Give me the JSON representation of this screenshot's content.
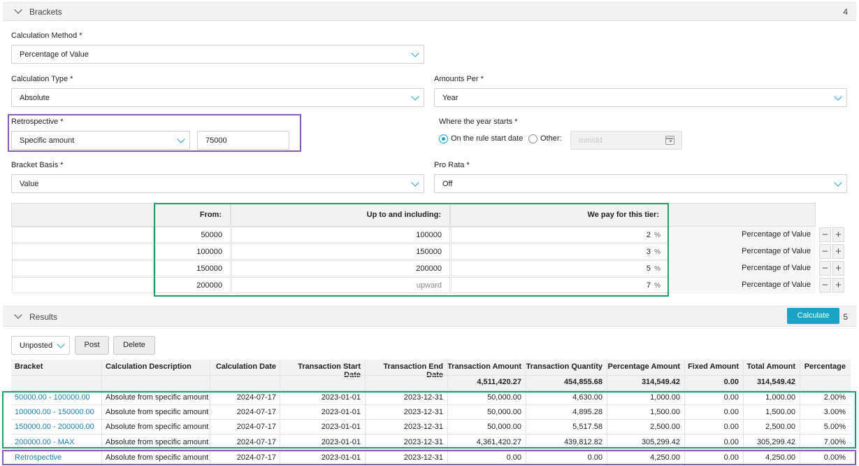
{
  "brackets_section": {
    "title": "Brackets",
    "count": "4"
  },
  "form": {
    "calc_method": {
      "label": "Calculation Method *",
      "value": "Percentage of Value"
    },
    "calc_type": {
      "label": "Calculation Type *",
      "value": "Absolute"
    },
    "amounts_per": {
      "label": "Amounts Per *",
      "value": "Year"
    },
    "retrospective": {
      "label": "Retrospective *",
      "value": "Specific amount",
      "amount": "75000"
    },
    "year_starts": {
      "label": "Where the year starts *",
      "option_rule": "On the rule start date",
      "option_other": "Other:",
      "date_placeholder": "mm/dd"
    },
    "bracket_basis": {
      "label": "Bracket Basis *",
      "value": "Value"
    },
    "pro_rata": {
      "label": "Pro Rata *",
      "value": "Off"
    }
  },
  "tiers": {
    "headers": {
      "from": "From:",
      "upto": "Up to and including:",
      "pay": "We pay for this tier:"
    },
    "rows": [
      {
        "from": "50000",
        "upto": "100000",
        "pay": "2",
        "unit": "%",
        "method": "Percentage of Value"
      },
      {
        "from": "100000",
        "upto": "150000",
        "pay": "3",
        "unit": "%",
        "method": "Percentage of Value"
      },
      {
        "from": "150000",
        "upto": "200000",
        "pay": "5",
        "unit": "%",
        "method": "Percentage of Value"
      },
      {
        "from": "200000",
        "upto": "upward",
        "pay": "7",
        "unit": "%",
        "method": "Percentage of Value"
      }
    ],
    "minus": "−",
    "plus": "+"
  },
  "results_section": {
    "title": "Results",
    "count": "5",
    "calculate": "Calculate"
  },
  "results_toolbar": {
    "status": "Unposted",
    "post": "Post",
    "delete": "Delete"
  },
  "results_table": {
    "headers": [
      "Bracket",
      "Calculation Description",
      "Calculation Date",
      "Transaction Start Date",
      "Transaction End Date",
      "Transaction Amount",
      "Transaction Quantity",
      "Percentage Amount",
      "Fixed Amount",
      "Total Amount",
      "Percentage"
    ],
    "totals": [
      "",
      "",
      "",
      "",
      "",
      "4,511,420.27",
      "454,855.68",
      "314,549.42",
      "0.00",
      "314,549.42",
      ""
    ],
    "rows": [
      [
        "50000.00 - 100000.00",
        "Absolute from specific amount",
        "2024-07-17",
        "2023-01-01",
        "2023-12-31",
        "50,000.00",
        "4,630.00",
        "1,000.00",
        "0.00",
        "1,000.00",
        "2.00%"
      ],
      [
        "100000.00 - 150000.00",
        "Absolute from specific amount",
        "2024-07-17",
        "2023-01-01",
        "2023-12-31",
        "50,000.00",
        "4,895.28",
        "1,500.00",
        "0.00",
        "1,500.00",
        "3.00%"
      ],
      [
        "150000.00 - 200000.00",
        "Absolute from specific amount",
        "2024-07-17",
        "2023-01-01",
        "2023-12-31",
        "50,000.00",
        "5,517.58",
        "2,500.00",
        "0.00",
        "2,500.00",
        "5.00%"
      ],
      [
        "200000.00 - MAX",
        "Absolute from specific amount",
        "2024-07-17",
        "2023-01-01",
        "2023-12-31",
        "4,361,420.27",
        "439,812.82",
        "305,299.42",
        "0.00",
        "305,299.42",
        "7.00%"
      ],
      [
        "Retrospective",
        "Absolute from specific amount",
        "2024-07-17",
        "2023-01-01",
        "2023-12-31",
        "0.00",
        "0.00",
        "4,250.00",
        "0.00",
        "4,250.00",
        "0.00%"
      ]
    ]
  },
  "colors": {
    "accent": "#1ba3c6",
    "highlight_purple": "#8a5bbf",
    "highlight_green": "#1f9e6b",
    "link": "#1a7fb5"
  }
}
